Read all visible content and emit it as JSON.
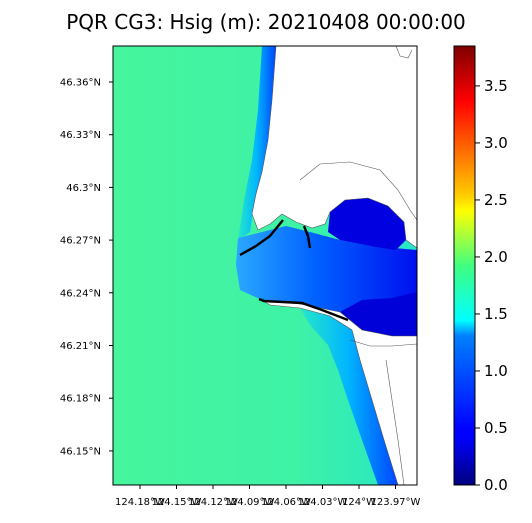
{
  "title": "PQR CG3: Hsig (m): 20210408 00:00:00",
  "map": {
    "lat_ticks": [
      "46.36°N",
      "46.33°N",
      "46.3°N",
      "46.27°N",
      "46.24°N",
      "46.21°N",
      "46.18°N",
      "46.15°N"
    ],
    "lon_ticks": [
      "124.18°W",
      "124.15°W",
      "124.12°W",
      "124.09°W",
      "124.06°W",
      "124.03°W",
      "124°W",
      "123.97°W"
    ],
    "colors": {
      "ocean_nearshore": "#2ff0b6",
      "ocean_offshore": "#46f59c",
      "channel": "#0066ff",
      "bay_deep": "#0000d8",
      "land": "#ffffff",
      "coastline": "#555555",
      "jetty": "#000000"
    }
  },
  "colorbar": {
    "ticks": [
      "0.0",
      "0.5",
      "1.0",
      "1.5",
      "2.0",
      "2.5",
      "3.0",
      "3.5"
    ],
    "min": 0.0,
    "max": 3.85,
    "colormap": "jet"
  }
}
